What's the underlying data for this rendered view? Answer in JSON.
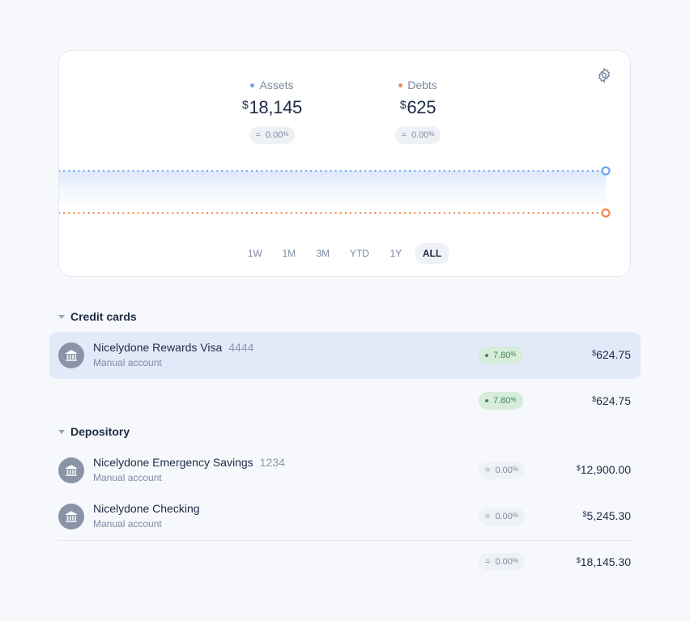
{
  "summary": {
    "assets": {
      "label": "Assets",
      "currency": "$",
      "value": "18,145",
      "change_sign": "=",
      "change": "0.00",
      "pct": "%"
    },
    "debts": {
      "label": "Debts",
      "currency": "$",
      "value": "625",
      "change_sign": "=",
      "change": "0.00",
      "pct": "%"
    },
    "colors": {
      "assets": "#6ea3f0",
      "debts": "#ef8a54"
    },
    "ranges": [
      "1W",
      "1M",
      "3M",
      "YTD",
      "1Y",
      "ALL"
    ],
    "active_range": "ALL",
    "settings_icon": "gear-icon"
  },
  "chart_data": {
    "type": "line",
    "series": [
      {
        "name": "Assets",
        "values": [
          18145,
          18145
        ]
      },
      {
        "name": "Debts",
        "values": [
          625,
          625
        ]
      }
    ]
  },
  "groups": {
    "credit": {
      "title": "Credit cards",
      "accounts": [
        {
          "name": "Nicelydone Rewards Visa",
          "mask": "4444",
          "subtitle": "Manual account",
          "change": "7.80",
          "currency": "$",
          "amount": "624.75",
          "icon": "bank-icon"
        }
      ],
      "total": {
        "change": "7.80",
        "currency": "$",
        "amount": "624.75"
      }
    },
    "depository": {
      "title": "Depository",
      "accounts": [
        {
          "name": "Nicelydone Emergency Savings",
          "mask": "1234",
          "subtitle": "Manual account",
          "change_sign": "=",
          "change": "0.00",
          "currency": "$",
          "amount": "12,900.00",
          "icon": "bank-icon"
        },
        {
          "name": "Nicelydone Checking",
          "mask": "",
          "subtitle": "Manual account",
          "change_sign": "=",
          "change": "0.00",
          "currency": "$",
          "amount": "5,245.30",
          "icon": "bank-icon"
        }
      ],
      "total": {
        "change_sign": "=",
        "change": "0.00",
        "currency": "$",
        "amount": "18,145.30"
      }
    }
  },
  "pct_symbol": "%"
}
